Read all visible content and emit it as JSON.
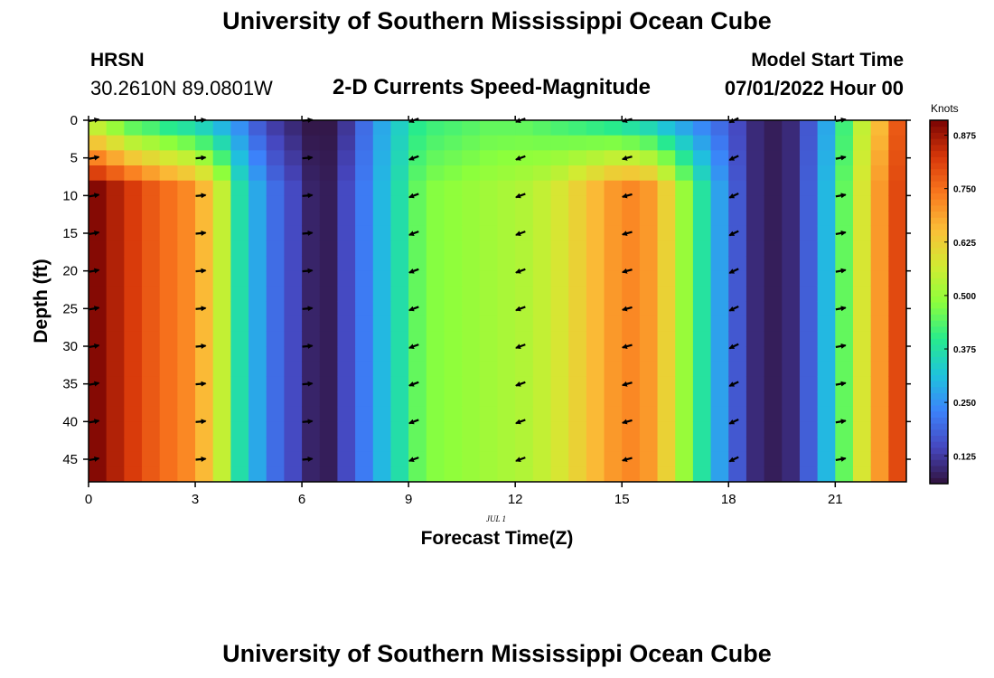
{
  "header": {
    "title": "University of Southern Mississippi Ocean Cube",
    "station": "HRSN",
    "coords": "30.2610N  89.0801W",
    "subtitle": "2-D Currents Speed-Magnitude",
    "model_start_label": "Model Start Time",
    "model_start_value": "07/01/2022 Hour 00",
    "footer_title": "University of Southern Mississippi Ocean Cube"
  },
  "chart_data": {
    "type": "heatmap",
    "title": "2-D Currents Speed-Magnitude",
    "xlabel": "Forecast Time(Z)",
    "ylabel": "Depth (ft)",
    "date_label": "JUL 1",
    "xlim": [
      0,
      23
    ],
    "ylim": [
      48,
      0
    ],
    "x_ticks": [
      0,
      3,
      6,
      9,
      12,
      15,
      18,
      21
    ],
    "y_ticks": [
      0,
      5,
      10,
      15,
      20,
      25,
      30,
      35,
      40,
      45
    ],
    "colorbar": {
      "label": "Knots",
      "ticks": [
        0.875,
        0.75,
        0.625,
        0.5,
        0.375,
        0.25,
        0.125
      ],
      "range": [
        0.06,
        0.91
      ]
    },
    "hours": [
      0,
      0.5,
      1,
      1.5,
      2,
      2.5,
      3,
      3.5,
      4,
      4.5,
      5,
      5.5,
      6,
      6.5,
      7,
      7.5,
      8,
      8.5,
      9,
      9.5,
      10,
      10.5,
      11,
      11.5,
      12,
      12.5,
      13,
      13.5,
      14,
      14.5,
      15,
      15.5,
      16,
      16.5,
      17,
      17.5,
      18,
      18.5,
      19,
      19.5,
      20,
      20.5,
      21,
      21.5,
      22,
      22.5
    ],
    "speed_at_depth_knots": [
      0.9,
      0.86,
      0.82,
      0.78,
      0.75,
      0.72,
      0.66,
      0.55,
      0.37,
      0.28,
      0.2,
      0.15,
      0.09,
      0.08,
      0.15,
      0.22,
      0.3,
      0.37,
      0.45,
      0.48,
      0.49,
      0.5,
      0.51,
      0.52,
      0.53,
      0.55,
      0.58,
      0.62,
      0.66,
      0.7,
      0.72,
      0.7,
      0.62,
      0.5,
      0.38,
      0.27,
      0.17,
      0.1,
      0.08,
      0.1,
      0.18,
      0.3,
      0.45,
      0.58,
      0.7,
      0.8
    ],
    "speed_at_surface_knots": [
      0.55,
      0.5,
      0.45,
      0.43,
      0.4,
      0.38,
      0.35,
      0.3,
      0.25,
      0.18,
      0.13,
      0.1,
      0.07,
      0.07,
      0.12,
      0.2,
      0.28,
      0.34,
      0.4,
      0.42,
      0.43,
      0.44,
      0.45,
      0.45,
      0.45,
      0.44,
      0.43,
      0.42,
      0.41,
      0.4,
      0.38,
      0.36,
      0.32,
      0.28,
      0.24,
      0.2,
      0.15,
      0.1,
      0.08,
      0.1,
      0.17,
      0.28,
      0.42,
      0.55,
      0.66,
      0.78
    ],
    "vectors": {
      "hours": [
        0,
        3,
        6,
        9,
        12,
        15,
        18,
        21
      ],
      "depths": [
        0,
        5,
        10,
        15,
        20,
        25,
        30,
        35,
        40,
        45
      ],
      "direction_deg_from_east": [
        10,
        5,
        5,
        200,
        200,
        195,
        205,
        10
      ]
    }
  }
}
